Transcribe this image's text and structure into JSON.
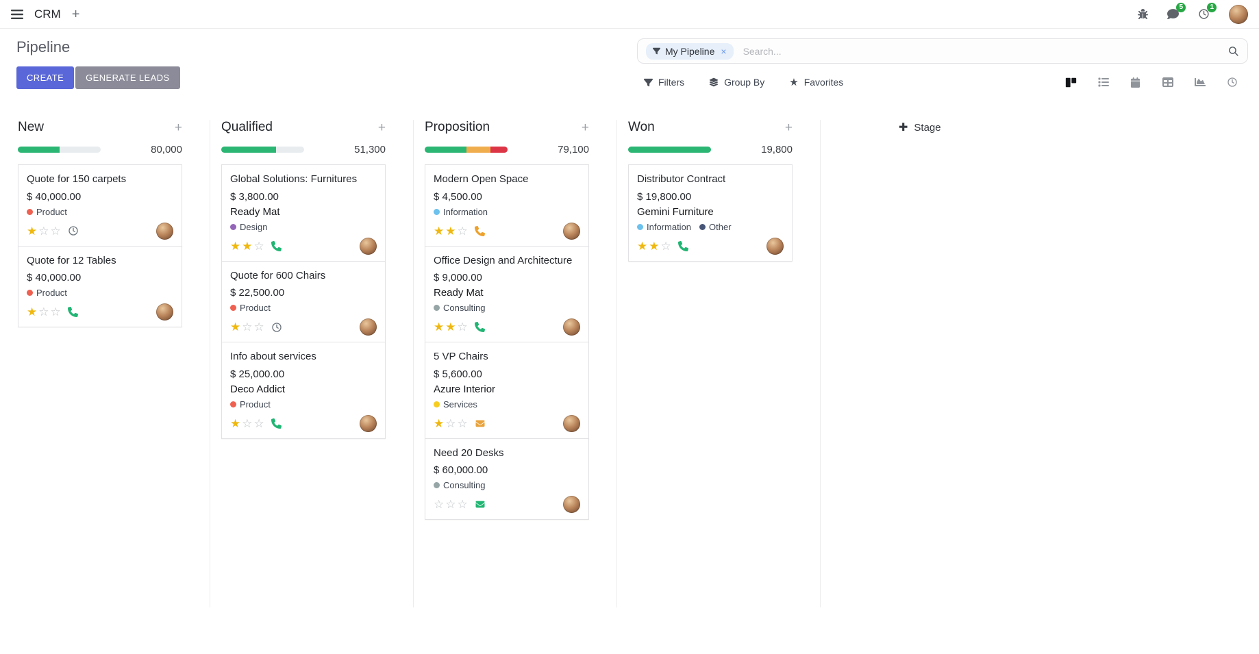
{
  "navbar": {
    "app_name": "CRM",
    "messages_badge": "5",
    "activities_badge": "1",
    "icons": [
      "apps-menu-icon",
      "plus-icon",
      "bug-icon",
      "messages-icon",
      "activities-clock-icon",
      "user-avatar"
    ]
  },
  "control_panel": {
    "title": "Pipeline",
    "create_label": "CREATE",
    "generate_leads_label": "GENERATE LEADS",
    "filters_label": "Filters",
    "group_by_label": "Group By",
    "favorites_label": "Favorites",
    "search": {
      "facet_label": "My Pipeline",
      "placeholder": "Search..."
    },
    "view_switcher": {
      "active": "kanban",
      "views": [
        "kanban-view-icon",
        "list-view-icon",
        "calendar-view-icon",
        "pivot-view-icon",
        "graph-view-icon",
        "activity-view-icon"
      ]
    },
    "colors": {
      "primary_button": "#5a67d8",
      "secondary_button": "#8b8b99"
    }
  },
  "kanban": {
    "add_stage_label": "Stage",
    "columns": [
      {
        "name": "New",
        "total": "80,000",
        "progress": [
          {
            "color": "#2bb673",
            "pct": 50
          }
        ],
        "cards": [
          {
            "title": "Quote for 150 carpets",
            "amount": "$ 40,000.00",
            "tags": [
              {
                "label": "Product",
                "color": "#f06050"
              }
            ],
            "rating": 1,
            "activity_icon": "clock-icon",
            "activity_color": "#6c757d"
          },
          {
            "title": "Quote for 12 Tables",
            "amount": "$ 40,000.00",
            "tags": [
              {
                "label": "Product",
                "color": "#f06050"
              }
            ],
            "rating": 1,
            "activity_icon": "phone-icon",
            "activity_color": "#21b573"
          }
        ]
      },
      {
        "name": "Qualified",
        "total": "51,300",
        "progress": [
          {
            "color": "#2bb673",
            "pct": 66
          }
        ],
        "cards": [
          {
            "title": "Global Solutions: Furnitures",
            "amount": "$ 3,800.00",
            "partner": "Ready Mat",
            "tags": [
              {
                "label": "Design",
                "color": "#9365b8"
              }
            ],
            "rating": 2,
            "activity_icon": "phone-icon",
            "activity_color": "#21b573"
          },
          {
            "title": "Quote for 600 Chairs",
            "amount": "$ 22,500.00",
            "tags": [
              {
                "label": "Product",
                "color": "#f06050"
              }
            ],
            "rating": 1,
            "activity_icon": "clock-icon",
            "activity_color": "#6c757d"
          },
          {
            "title": "Info about services",
            "amount": "$ 25,000.00",
            "partner": "Deco Addict",
            "tags": [
              {
                "label": "Product",
                "color": "#f06050"
              }
            ],
            "rating": 1,
            "activity_icon": "phone-icon",
            "activity_color": "#21b573"
          }
        ]
      },
      {
        "name": "Proposition",
        "total": "79,100",
        "progress": [
          {
            "color": "#2bb673",
            "pct": 50
          },
          {
            "color": "#f0ad4e",
            "pct": 29
          },
          {
            "color": "#dc3545",
            "pct": 21
          }
        ],
        "cards": [
          {
            "title": "Modern Open Space",
            "amount": "$ 4,500.00",
            "tags": [
              {
                "label": "Information",
                "color": "#6cc1ed"
              }
            ],
            "rating": 2,
            "activity_icon": "phone-icon",
            "activity_color": "#eda12c"
          },
          {
            "title": "Office Design and Architecture",
            "amount": "$ 9,000.00",
            "partner": "Ready Mat",
            "tags": [
              {
                "label": "Consulting",
                "color": "#96a5a6"
              }
            ],
            "rating": 2,
            "activity_icon": "phone-icon",
            "activity_color": "#21b573"
          },
          {
            "title": "5 VP Chairs",
            "amount": "$ 5,600.00",
            "partner": "Azure Interior",
            "tags": [
              {
                "label": "Services",
                "color": "#f7cd1f"
              }
            ],
            "rating": 1,
            "activity_icon": "envelope-icon",
            "activity_color": "#e8a33d"
          },
          {
            "title": "Need 20 Desks",
            "amount": "$ 60,000.00",
            "tags": [
              {
                "label": "Consulting",
                "color": "#96a5a6"
              }
            ],
            "rating": 0,
            "activity_icon": "envelope-icon",
            "activity_color": "#21b573"
          }
        ]
      },
      {
        "name": "Won",
        "total": "19,800",
        "progress": [
          {
            "color": "#2bb673",
            "pct": 100
          }
        ],
        "cards": [
          {
            "title": "Distributor Contract",
            "amount": "$ 19,800.00",
            "partner": "Gemini Furniture",
            "tags": [
              {
                "label": "Information",
                "color": "#6cc1ed"
              },
              {
                "label": "Other",
                "color": "#475577"
              }
            ],
            "rating": 2,
            "activity_icon": "phone-icon",
            "activity_color": "#21b573"
          }
        ]
      }
    ]
  }
}
